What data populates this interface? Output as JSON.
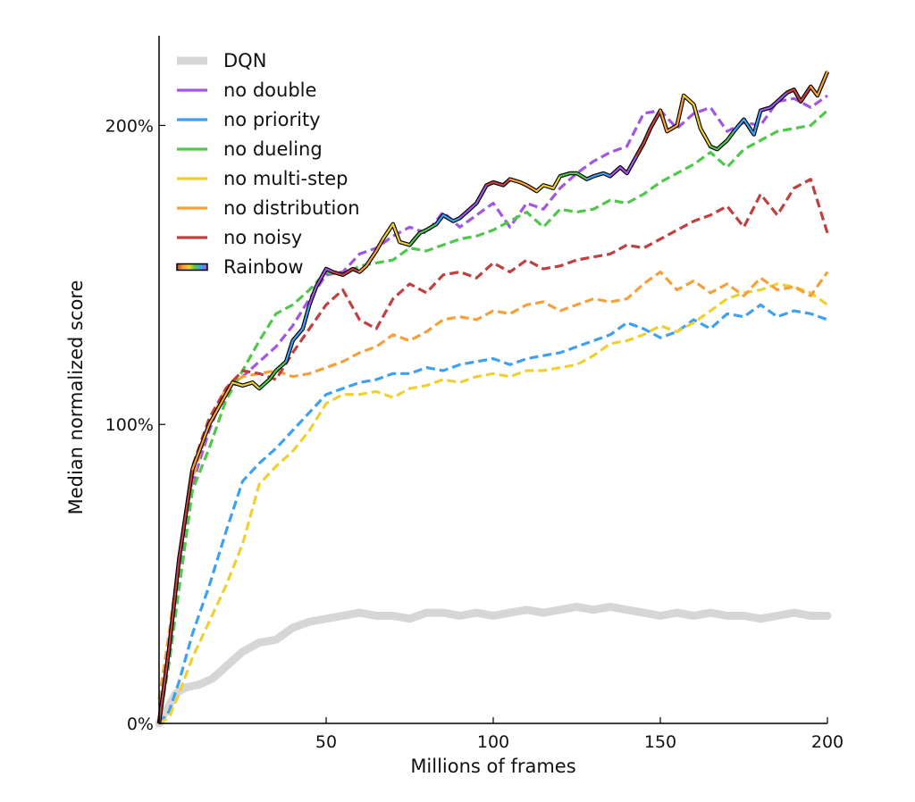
{
  "chart_data": {
    "type": "line",
    "title": "",
    "xlabel": "Millions of frames",
    "ylabel": "Median normalized score",
    "xlim": [
      0,
      200
    ],
    "ylim": [
      0,
      2.3
    ],
    "xticks": [
      50,
      100,
      150,
      200
    ],
    "xtick_labels": [
      "50",
      "100",
      "150",
      "200"
    ],
    "yticks": [
      0,
      1,
      2
    ],
    "ytick_labels": [
      "0%",
      "100%",
      "200%"
    ],
    "grid": false,
    "legend_position": "top-left",
    "series": [
      {
        "name": "DQN",
        "color": "#d6d6d6",
        "style": "solid-thick",
        "x": [
          0,
          3,
          5,
          8,
          12,
          16,
          20,
          25,
          30,
          35,
          40,
          45,
          50,
          55,
          60,
          65,
          70,
          75,
          80,
          85,
          90,
          95,
          100,
          105,
          110,
          115,
          120,
          125,
          130,
          135,
          140,
          145,
          150,
          155,
          160,
          165,
          170,
          175,
          180,
          185,
          190,
          195,
          200
        ],
        "y": [
          0,
          0.06,
          0.1,
          0.12,
          0.13,
          0.15,
          0.19,
          0.24,
          0.27,
          0.28,
          0.32,
          0.34,
          0.35,
          0.36,
          0.37,
          0.36,
          0.36,
          0.35,
          0.37,
          0.37,
          0.36,
          0.37,
          0.36,
          0.37,
          0.38,
          0.37,
          0.38,
          0.39,
          0.38,
          0.39,
          0.38,
          0.37,
          0.36,
          0.37,
          0.36,
          0.37,
          0.36,
          0.36,
          0.35,
          0.36,
          0.37,
          0.36,
          0.36
        ]
      },
      {
        "name": "no double",
        "color": "#a056e3",
        "style": "dashed",
        "x": [
          0,
          3,
          6,
          10,
          15,
          20,
          25,
          30,
          35,
          40,
          45,
          50,
          55,
          60,
          65,
          70,
          75,
          80,
          85,
          90,
          95,
          100,
          105,
          110,
          115,
          120,
          125,
          130,
          135,
          140,
          145,
          150,
          155,
          160,
          165,
          170,
          175,
          180,
          185,
          190,
          195,
          200
        ],
        "y": [
          0,
          0.22,
          0.52,
          0.8,
          0.98,
          1.12,
          1.16,
          1.21,
          1.26,
          1.33,
          1.42,
          1.5,
          1.51,
          1.57,
          1.59,
          1.63,
          1.66,
          1.64,
          1.71,
          1.66,
          1.7,
          1.74,
          1.66,
          1.74,
          1.72,
          1.79,
          1.84,
          1.88,
          1.91,
          1.93,
          2.04,
          2.05,
          1.99,
          2.04,
          2.06,
          1.98,
          2.01,
          2.0,
          2.08,
          2.09,
          2.06,
          2.1
        ]
      },
      {
        "name": "no priority",
        "color": "#3da0f2",
        "style": "dashed",
        "x": [
          0,
          3,
          6,
          10,
          15,
          20,
          25,
          30,
          35,
          40,
          45,
          50,
          55,
          60,
          65,
          70,
          75,
          80,
          85,
          90,
          95,
          100,
          105,
          110,
          115,
          120,
          125,
          130,
          135,
          140,
          145,
          150,
          155,
          160,
          165,
          170,
          175,
          180,
          185,
          190,
          195,
          200
        ],
        "y": [
          0,
          0.04,
          0.14,
          0.3,
          0.46,
          0.64,
          0.81,
          0.87,
          0.92,
          0.98,
          1.04,
          1.1,
          1.12,
          1.14,
          1.15,
          1.17,
          1.17,
          1.19,
          1.18,
          1.2,
          1.21,
          1.22,
          1.2,
          1.22,
          1.23,
          1.24,
          1.26,
          1.28,
          1.3,
          1.34,
          1.32,
          1.29,
          1.31,
          1.35,
          1.32,
          1.37,
          1.36,
          1.4,
          1.36,
          1.38,
          1.37,
          1.35
        ]
      },
      {
        "name": "no dueling",
        "color": "#4fc74b",
        "style": "dashed",
        "x": [
          0,
          3,
          6,
          10,
          15,
          20,
          25,
          30,
          35,
          40,
          45,
          50,
          55,
          60,
          65,
          70,
          75,
          80,
          85,
          90,
          95,
          100,
          105,
          110,
          115,
          120,
          125,
          130,
          135,
          140,
          145,
          150,
          155,
          160,
          165,
          170,
          175,
          180,
          185,
          190,
          195,
          200
        ],
        "y": [
          0,
          0.2,
          0.45,
          0.78,
          0.92,
          1.08,
          1.18,
          1.28,
          1.37,
          1.4,
          1.45,
          1.51,
          1.5,
          1.53,
          1.54,
          1.55,
          1.59,
          1.58,
          1.6,
          1.62,
          1.63,
          1.65,
          1.68,
          1.71,
          1.66,
          1.72,
          1.71,
          1.72,
          1.75,
          1.74,
          1.77,
          1.81,
          1.84,
          1.87,
          1.91,
          1.86,
          1.92,
          1.95,
          1.98,
          1.99,
          2.0,
          2.05
        ]
      },
      {
        "name": "no multi-step",
        "color": "#f0d030",
        "style": "dashed",
        "x": [
          0,
          3,
          6,
          10,
          15,
          20,
          25,
          30,
          35,
          40,
          45,
          50,
          55,
          60,
          65,
          70,
          75,
          80,
          85,
          90,
          95,
          100,
          105,
          110,
          115,
          120,
          125,
          130,
          135,
          140,
          145,
          150,
          155,
          160,
          165,
          170,
          175,
          180,
          185,
          190,
          195,
          200
        ],
        "y": [
          0,
          0.02,
          0.1,
          0.22,
          0.34,
          0.46,
          0.6,
          0.8,
          0.86,
          0.91,
          0.98,
          1.07,
          1.1,
          1.1,
          1.11,
          1.09,
          1.12,
          1.13,
          1.15,
          1.14,
          1.16,
          1.17,
          1.16,
          1.18,
          1.18,
          1.19,
          1.2,
          1.23,
          1.27,
          1.28,
          1.3,
          1.33,
          1.31,
          1.34,
          1.38,
          1.42,
          1.44,
          1.45,
          1.47,
          1.46,
          1.44,
          1.4
        ]
      },
      {
        "name": "no distribution",
        "color": "#f5a03a",
        "style": "dashed",
        "x": [
          0,
          3,
          6,
          10,
          15,
          20,
          25,
          30,
          35,
          40,
          45,
          50,
          55,
          60,
          65,
          70,
          75,
          80,
          85,
          90,
          95,
          100,
          105,
          110,
          115,
          120,
          125,
          130,
          135,
          140,
          145,
          150,
          155,
          160,
          165,
          170,
          175,
          180,
          185,
          190,
          195,
          200
        ],
        "y": [
          0.08,
          0.3,
          0.55,
          0.82,
          1.0,
          1.12,
          1.16,
          1.17,
          1.18,
          1.16,
          1.17,
          1.19,
          1.21,
          1.24,
          1.26,
          1.3,
          1.28,
          1.31,
          1.35,
          1.36,
          1.35,
          1.38,
          1.37,
          1.4,
          1.41,
          1.38,
          1.4,
          1.42,
          1.41,
          1.42,
          1.47,
          1.51,
          1.45,
          1.48,
          1.44,
          1.47,
          1.43,
          1.49,
          1.45,
          1.46,
          1.43,
          1.51
        ]
      },
      {
        "name": "no noisy",
        "color": "#c0403f",
        "style": "dashed",
        "x": [
          0,
          3,
          6,
          10,
          15,
          20,
          25,
          30,
          35,
          40,
          45,
          50,
          55,
          60,
          65,
          70,
          75,
          80,
          85,
          90,
          95,
          100,
          105,
          110,
          115,
          120,
          125,
          130,
          135,
          140,
          145,
          150,
          155,
          160,
          165,
          170,
          175,
          180,
          185,
          190,
          195,
          200
        ],
        "y": [
          0.02,
          0.25,
          0.55,
          0.86,
          1.02,
          1.12,
          1.18,
          1.17,
          1.15,
          1.24,
          1.32,
          1.4,
          1.45,
          1.35,
          1.32,
          1.42,
          1.47,
          1.44,
          1.5,
          1.51,
          1.49,
          1.54,
          1.51,
          1.55,
          1.52,
          1.53,
          1.55,
          1.56,
          1.57,
          1.6,
          1.59,
          1.62,
          1.65,
          1.68,
          1.7,
          1.73,
          1.66,
          1.77,
          1.7,
          1.79,
          1.82,
          1.64
        ]
      },
      {
        "name": "Rainbow",
        "color": "#000000",
        "style": "rainbow",
        "x": [
          0,
          3,
          6,
          10,
          15,
          20,
          22,
          25,
          28,
          30,
          33,
          35,
          38,
          40,
          43,
          45,
          47,
          50,
          52,
          55,
          58,
          60,
          62,
          65,
          67,
          70,
          72,
          75,
          78,
          80,
          83,
          85,
          88,
          90,
          93,
          95,
          98,
          100,
          103,
          105,
          108,
          110,
          113,
          115,
          118,
          120,
          123,
          125,
          128,
          130,
          133,
          135,
          138,
          140,
          143,
          145,
          147,
          150,
          152,
          155,
          157,
          160,
          162,
          165,
          167,
          170,
          172,
          175,
          178,
          180,
          183,
          185,
          188,
          190,
          192,
          195,
          197,
          200
        ],
        "y": [
          0,
          0.25,
          0.55,
          0.85,
          1.0,
          1.1,
          1.14,
          1.13,
          1.14,
          1.12,
          1.15,
          1.18,
          1.21,
          1.28,
          1.32,
          1.4,
          1.46,
          1.52,
          1.51,
          1.5,
          1.52,
          1.51,
          1.53,
          1.58,
          1.62,
          1.67,
          1.61,
          1.6,
          1.64,
          1.65,
          1.67,
          1.7,
          1.68,
          1.69,
          1.72,
          1.74,
          1.8,
          1.81,
          1.8,
          1.82,
          1.81,
          1.8,
          1.78,
          1.8,
          1.79,
          1.83,
          1.84,
          1.84,
          1.82,
          1.83,
          1.84,
          1.83,
          1.86,
          1.84,
          1.9,
          1.94,
          1.99,
          2.05,
          1.98,
          2.0,
          2.1,
          2.07,
          1.99,
          1.93,
          1.92,
          1.95,
          1.98,
          2.02,
          1.97,
          2.05,
          2.06,
          2.08,
          2.11,
          2.12,
          2.08,
          2.13,
          2.1,
          2.18
        ]
      }
    ]
  }
}
